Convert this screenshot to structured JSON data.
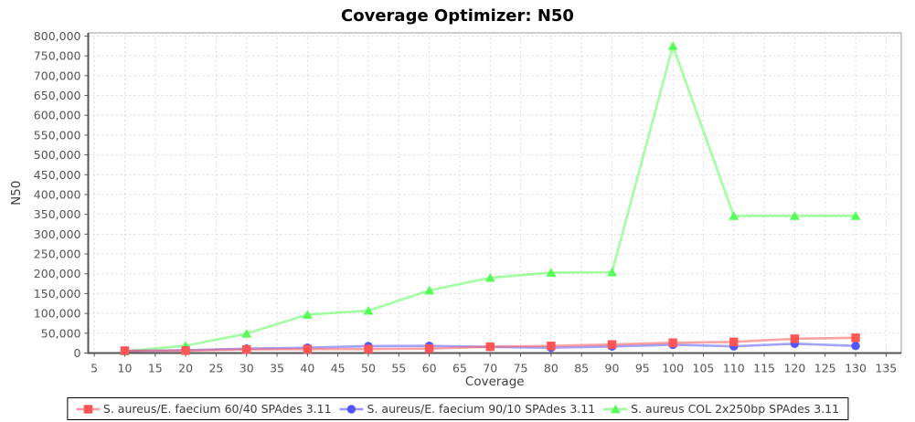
{
  "chart_data": {
    "type": "line",
    "title": "Coverage Optimizer: N50",
    "xlabel": "Coverage",
    "ylabel": "N50",
    "grid": true,
    "legend_position": "bottom",
    "xlim": [
      4,
      137.5
    ],
    "ylim": [
      0,
      808000
    ],
    "x_ticks": [
      5,
      10,
      15,
      20,
      25,
      30,
      35,
      40,
      45,
      50,
      55,
      60,
      65,
      70,
      75,
      80,
      85,
      90,
      95,
      100,
      105,
      110,
      115,
      120,
      125,
      130,
      135
    ],
    "y_ticks": [
      0,
      50000,
      100000,
      150000,
      200000,
      250000,
      300000,
      350000,
      400000,
      450000,
      500000,
      550000,
      600000,
      650000,
      700000,
      750000,
      800000
    ],
    "x": [
      10,
      20,
      30,
      40,
      50,
      60,
      70,
      80,
      90,
      100,
      110,
      120,
      130
    ],
    "series": [
      {
        "name": "S. aureus/E. faecium 60/40 SPAdes 3.11",
        "color": "#FF5555",
        "marker": "square",
        "values": [
          6000,
          6000,
          9000,
          9500,
          10000,
          11000,
          16000,
          18000,
          21500,
          26000,
          28000,
          36000,
          38500
        ]
      },
      {
        "name": "S. aureus/E. faecium 90/10 SPAdes 3.11",
        "color": "#5555FF",
        "marker": "circle",
        "values": [
          5000,
          7000,
          11000,
          13500,
          17500,
          18000,
          15500,
          13500,
          16500,
          21000,
          17000,
          23500,
          18000
        ]
      },
      {
        "name": "S. aureus COL 2x250bp SPAdes 3.11",
        "color": "#55FF55",
        "marker": "triangle",
        "values": [
          4500,
          18500,
          49000,
          97000,
          107000,
          158000,
          190000,
          203000,
          204000,
          775000,
          346000,
          346000,
          346000
        ]
      }
    ],
    "style": {
      "grid_color": "#dcdcdc",
      "plot_border_color": "#999999",
      "axis_line_color": "#555555",
      "tick_label_color": "#555555",
      "axis_title_color": "#404040",
      "background": "#ffffff"
    }
  }
}
